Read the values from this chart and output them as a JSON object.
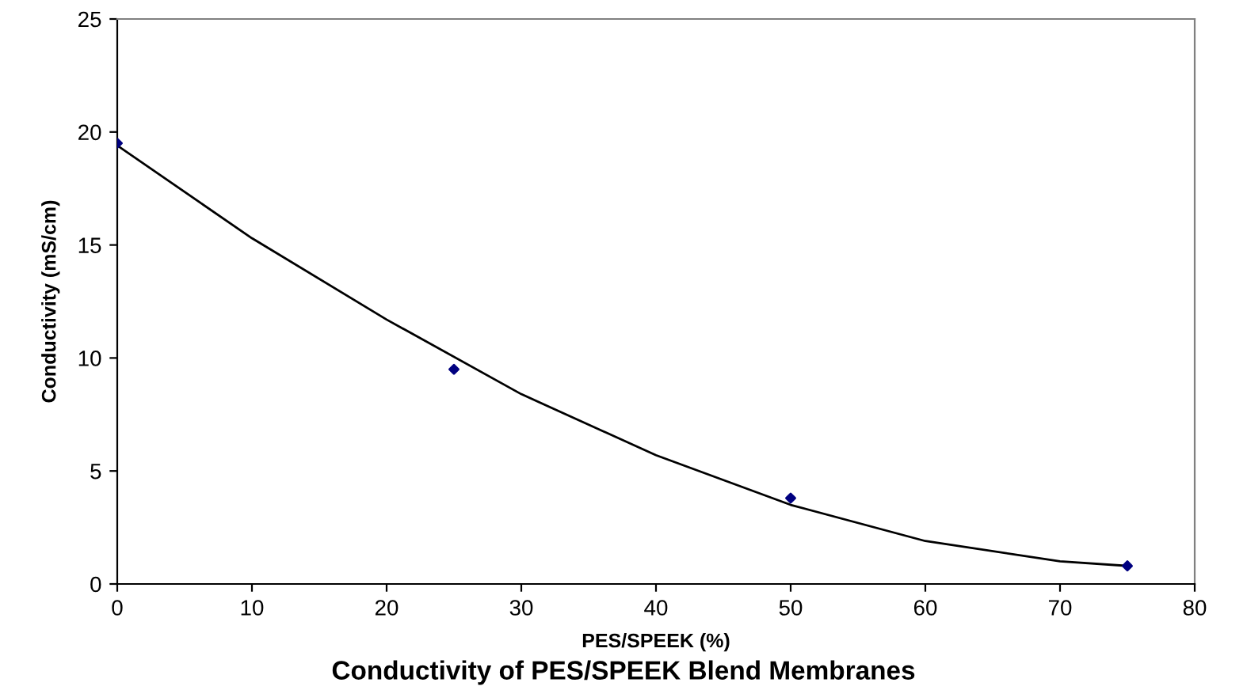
{
  "chart_data": {
    "type": "scatter",
    "title": "Conductivity of PES/SPEEK Blend Membranes",
    "xlabel": "PES/SPEEK (%)",
    "ylabel": "Conductivity (mS/cm)",
    "series": [
      {
        "color": "#000080",
        "marker": "diamond",
        "x": [
          0,
          25,
          50,
          75
        ],
        "values": [
          19.5,
          9.5,
          3.8,
          0.8
        ]
      },
      {
        "type": "line",
        "color": "#000000",
        "marker": "none",
        "x": [
          0,
          10,
          20,
          30,
          40,
          50,
          60,
          70,
          75
        ],
        "values": [
          19.4,
          15.3,
          11.7,
          8.4,
          5.7,
          3.5,
          1.9,
          1.0,
          0.8
        ]
      }
    ],
    "xlim": [
      0,
      80
    ],
    "xticks": [
      0,
      10,
      20,
      30,
      40,
      50,
      60,
      70,
      80
    ],
    "ylim": [
      0,
      25
    ],
    "yticks": [
      0,
      5,
      10,
      15,
      20,
      25
    ],
    "grid": false,
    "legend": false
  }
}
